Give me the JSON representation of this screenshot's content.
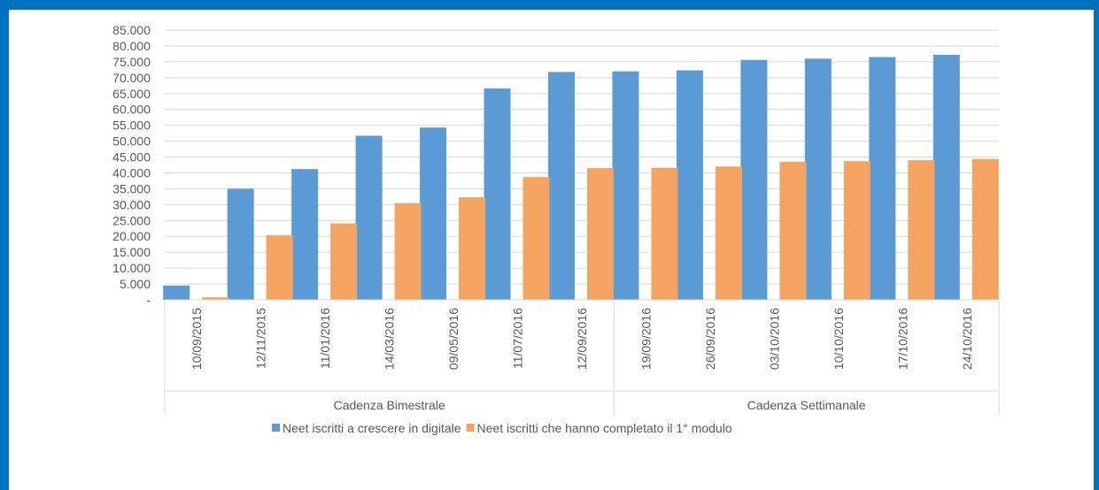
{
  "chart_data": {
    "type": "bar",
    "title": "",
    "xlabel": "",
    "ylabel": "",
    "ylim": [
      0,
      85000
    ],
    "yticks": [
      0,
      5000,
      10000,
      15000,
      20000,
      25000,
      30000,
      35000,
      40000,
      45000,
      50000,
      55000,
      60000,
      65000,
      70000,
      75000,
      80000,
      85000
    ],
    "ytick_labels": [
      "-",
      "5.000",
      "10.000",
      "15.000",
      "20.000",
      "25.000",
      "30.000",
      "35.000",
      "40.000",
      "45.000",
      "50.000",
      "55.000",
      "60.000",
      "65.000",
      "70.000",
      "75.000",
      "80.000",
      "85.000"
    ],
    "grid": true,
    "legend_position": "bottom",
    "categories": [
      "10/09/2015",
      "12/11/2015",
      "11/01/2016",
      "14/03/2016",
      "09/05/2016",
      "11/07/2016",
      "12/09/2016",
      "19/09/2016",
      "26/09/2016",
      "03/10/2016",
      "10/10/2016",
      "17/10/2016",
      "24/10/2016"
    ],
    "category_groups": [
      {
        "label": "Cadenza Bimestrale",
        "count": 7
      },
      {
        "label": "Cadenza Settimanale",
        "count": 6
      }
    ],
    "series": [
      {
        "name": "Neet iscritti a crescere in digitale",
        "color": "#5B9BD5",
        "values": [
          4500,
          35000,
          41200,
          51700,
          54300,
          66600,
          71800,
          72000,
          72300,
          75600,
          76000,
          76500,
          77200
        ]
      },
      {
        "name": "Neet iscritti che hanno completato il 1° modulo",
        "color": "#F4A460",
        "values": [
          800,
          20300,
          24100,
          30500,
          32300,
          38700,
          41500,
          41600,
          42000,
          43500,
          43700,
          44000,
          44400
        ]
      }
    ]
  }
}
